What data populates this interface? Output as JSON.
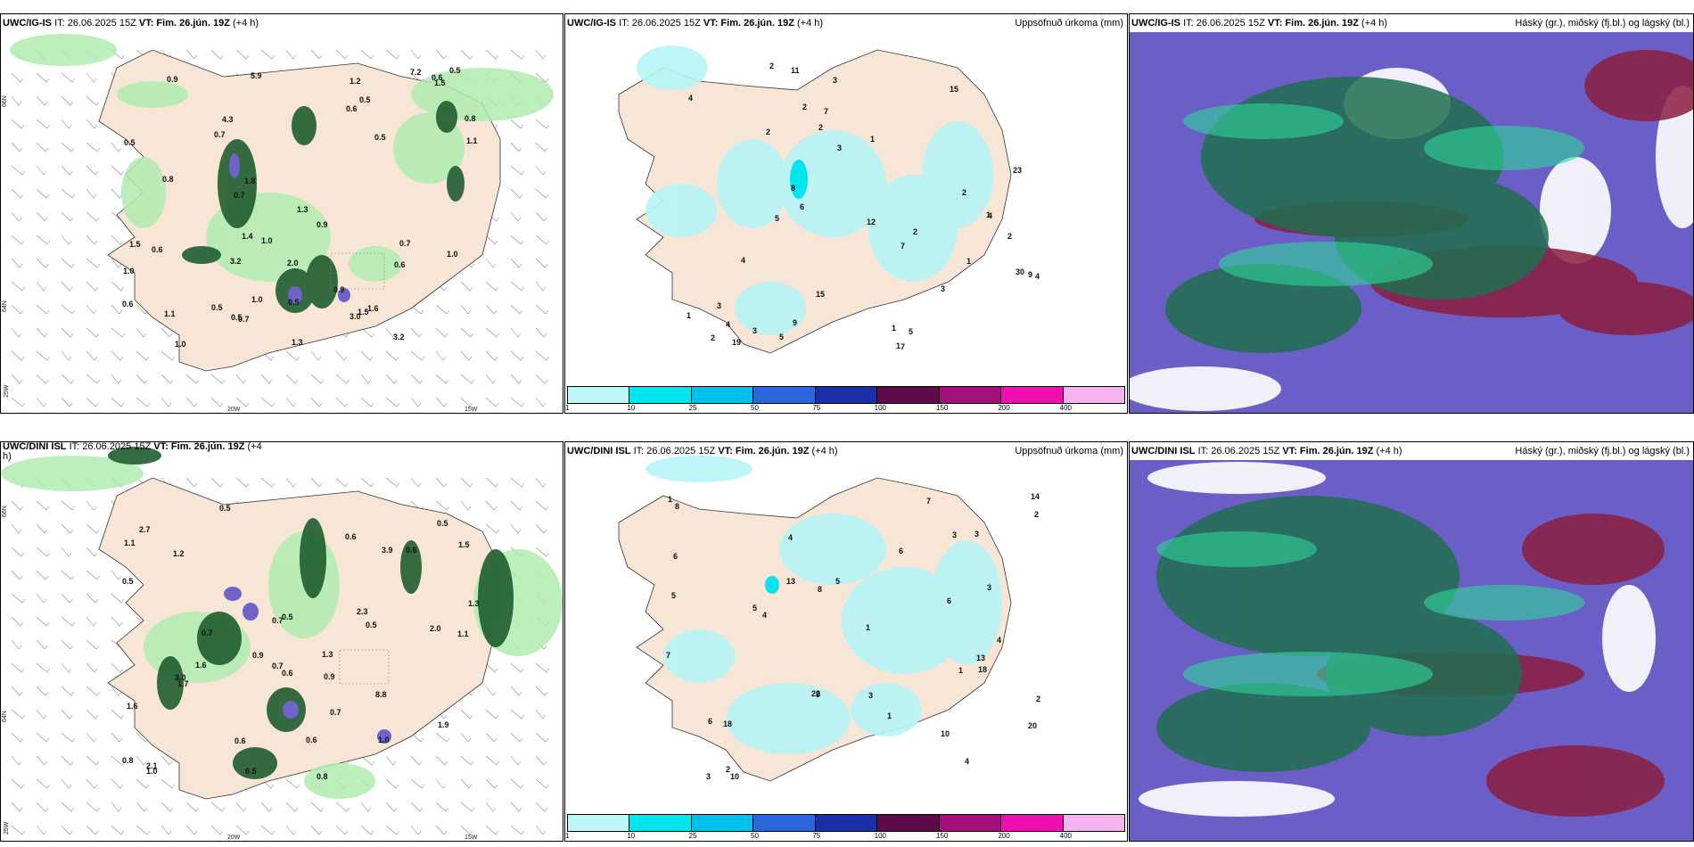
{
  "panels": {
    "p1": {
      "model": "UWC/IG-IS",
      "it": "IT: 26.06.2025 15Z",
      "vt": "VT: Fim. 26.jún. 19Z",
      "lead": "(+4 h)",
      "right": ""
    },
    "p2": {
      "model": "UWC/IG-IS",
      "it": "IT: 26.06.2025 15Z",
      "vt": "VT: Fim. 26.jún. 19Z",
      "lead": "(+4 h)",
      "right": "Uppsöfnuð úrkoma (mm)"
    },
    "p3": {
      "model": "UWC/IG-IS",
      "it": "IT: 26.06.2025 15Z",
      "vt": "VT: Fim. 26.jún. 19Z",
      "lead": "(+4 h)",
      "right": "Háský (gr.), miðský (fj.bl.) og lágský (bl.)"
    },
    "p4": {
      "model": "UWC/DINI ISL",
      "it": "IT: 26.06.2025 15Z",
      "vt": "VT: Fim. 26.jún. 19Z",
      "lead": "(+4",
      "lead2": "h)",
      "right": ""
    },
    "p5": {
      "model": "UWC/DINI ISL",
      "it": "IT: 26.06.2025 15Z",
      "vt": "VT: Fim. 26.jún. 19Z",
      "lead": "(+4 h)",
      "right": "Uppsöfnuð úrkoma (mm)"
    },
    "p6": {
      "model": "UWC/DINI ISL",
      "it": "IT: 26.06.2025 15Z",
      "vt": "VT: Fim. 26.jún. 19Z",
      "lead": "(+4 h)",
      "right": "Háský (gr.), miðský (fj.bl.) og lágský (bl.)"
    }
  },
  "grid_labels": {
    "lat66": "66N",
    "lat64": "64N",
    "lon20": "20W",
    "lon15": "15W",
    "lon25": "25W"
  },
  "colorbar": {
    "ticks": [
      "1",
      "10",
      "25",
      "50",
      "75",
      "100",
      "150",
      "200",
      "400"
    ],
    "colors": [
      "#bff6f6",
      "#00e5ee",
      "#00bfe8",
      "#2a66e0",
      "#1a2fa8",
      "#5e0a4a",
      "#a3107a",
      "#ee10b0",
      "#f5b4f0"
    ]
  },
  "colors": {
    "land": "#f7e6d6",
    "precip_light": "#b0ecb0",
    "precip_dark": "#1f5d2f",
    "precip_purple": "#6f62c8",
    "cyan": "#b7f4f6",
    "cloud_bg": "#6b5fc7"
  },
  "precip_labels_top": [
    "0.6",
    "0.7",
    "1.0",
    "0.6",
    "0.7",
    "1.3",
    "0.9",
    "1.2",
    "0.9",
    "3.2",
    "1.5",
    "0.7",
    "0.6",
    "1.1",
    "1.0",
    "1.5",
    "1.0",
    "0.5",
    "1.0",
    "0.5",
    "0.6",
    "0.7",
    "5.9",
    "3.2",
    "2.0",
    "0.5",
    "0.8",
    "7.2",
    "4.3",
    "1.3",
    "0.5",
    "0.9",
    "1.8",
    "0.5",
    "0.5",
    "0.6",
    "0.8",
    "3.0",
    "1.6",
    "1.5",
    "0.5",
    "1.1",
    "1.4",
    "1.0"
  ],
  "precip_labels_bottom": [
    "0.6",
    "2.1",
    "1.6",
    "0.7",
    "2.7",
    "0.5",
    "3.0",
    "0.8",
    "0.6",
    "0.8",
    "1.3",
    "1.9",
    "0.9",
    "2.0",
    "0.7",
    "1.6",
    "3.9",
    "0.5",
    "0.6",
    "1.3",
    "0.6",
    "0.5",
    "0.9",
    "1.5",
    "0.5",
    "1.2",
    "8.8",
    "0.7",
    "1.1",
    "0.6",
    "1.0",
    "2.3",
    "1.7",
    "0.7",
    "0.5",
    "0.5",
    "1.0",
    "1.1"
  ],
  "accum_labels_top": [
    "2",
    "3",
    "3",
    "1",
    "4",
    "1",
    "2",
    "6",
    "2",
    "19",
    "30",
    "7",
    "2",
    "23",
    "15",
    "9",
    "8",
    "5",
    "4",
    "4",
    "2",
    "7",
    "15",
    "5",
    "2",
    "4",
    "3",
    "1",
    "3",
    "2",
    "3",
    "7",
    "5",
    "11",
    "12",
    "9",
    "1",
    "4",
    "1",
    "2",
    "1"
  ],
  "accum_labels_bottom": [
    "1",
    "1",
    "9",
    "3",
    "7",
    "4",
    "2",
    "6",
    "22",
    "14",
    "8",
    "10",
    "3",
    "13",
    "18",
    "1",
    "2",
    "4",
    "3",
    "6",
    "7",
    "3",
    "8",
    "4",
    "18",
    "13",
    "5",
    "2",
    "3",
    "20",
    "1",
    "10",
    "6",
    "4",
    "5",
    "5",
    "6"
  ]
}
